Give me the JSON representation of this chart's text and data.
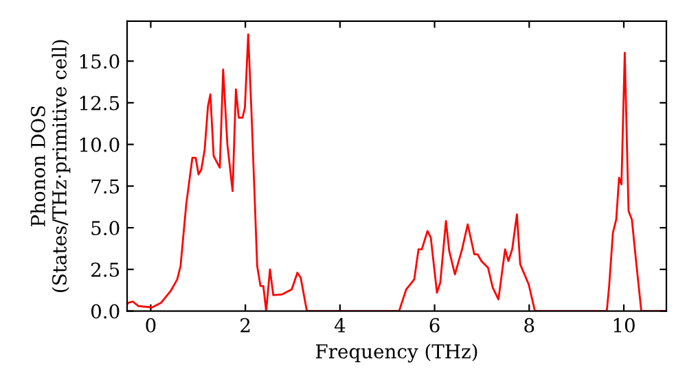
{
  "chart_data": {
    "type": "line",
    "xlabel": "Frequency (THz)",
    "ylabel": "Phonon DOS\n(States/THz·primitive cell)",
    "xlim": [
      -0.5,
      10.9
    ],
    "ylim": [
      0,
      17.4
    ],
    "xticks": [
      0,
      2,
      4,
      6,
      8,
      10
    ],
    "yticks": [
      {
        "value": 0,
        "label": "0.0"
      },
      {
        "value": 2.5,
        "label": "2.5"
      },
      {
        "value": 5,
        "label": "5.0"
      },
      {
        "value": 7.5,
        "label": "7.5"
      },
      {
        "value": 10,
        "label": "10.0"
      },
      {
        "value": 12.5,
        "label": "12.5"
      },
      {
        "value": 15,
        "label": "15.0"
      }
    ],
    "grid": false,
    "marker": "none",
    "line_style": "solid",
    "series": [
      {
        "color": "#ff0000",
        "x": [
          -0.5,
          -0.47,
          -0.38,
          -0.26,
          0.03,
          0.22,
          0.42,
          0.56,
          0.63,
          0.75,
          0.88,
          0.95,
          1.01,
          1.07,
          1.14,
          1.21,
          1.26,
          1.33,
          1.46,
          1.53,
          1.62,
          1.73,
          1.8,
          1.86,
          1.94,
          1.99,
          2.06,
          2.13,
          2.25,
          2.32,
          2.38,
          2.44,
          2.52,
          2.59,
          2.78,
          2.98,
          3.1,
          3.17,
          3.3,
          5.25,
          5.4,
          5.57,
          5.66,
          5.73,
          5.85,
          5.92,
          6.05,
          6.12,
          6.24,
          6.31,
          6.43,
          6.58,
          6.7,
          6.84,
          6.91,
          6.99,
          7.13,
          7.23,
          7.35,
          7.49,
          7.56,
          7.64,
          7.74,
          7.81,
          7.9,
          7.99,
          8.12,
          9.64,
          9.69,
          9.77,
          9.84,
          9.9,
          9.95,
          10.02,
          10.1,
          10.17,
          10.27,
          10.37,
          10.9
        ],
        "values": [
          0.4,
          0.5,
          0.57,
          0.3,
          0.22,
          0.5,
          1.2,
          1.9,
          2.7,
          6.4,
          9.2,
          9.2,
          8.2,
          8.5,
          9.7,
          12.3,
          13.0,
          9.3,
          8.6,
          14.5,
          10.0,
          7.2,
          13.3,
          11.6,
          11.6,
          12.2,
          16.6,
          11.9,
          2.7,
          1.5,
          1.5,
          0,
          2.5,
          0.96,
          1.0,
          1.3,
          2.3,
          2.0,
          0,
          0,
          1.3,
          1.9,
          3.7,
          3.7,
          4.8,
          4.4,
          1.1,
          1.7,
          5.4,
          3.6,
          2.2,
          3.7,
          5.2,
          3.4,
          3.4,
          3.0,
          2.6,
          1.4,
          0.7,
          3.7,
          3.0,
          3.7,
          5.8,
          2.8,
          2.2,
          1.6,
          0,
          0,
          1.5,
          4.7,
          5.5,
          8.0,
          7.6,
          15.5,
          6.0,
          5.5,
          2.7,
          0,
          0
        ]
      }
    ]
  }
}
